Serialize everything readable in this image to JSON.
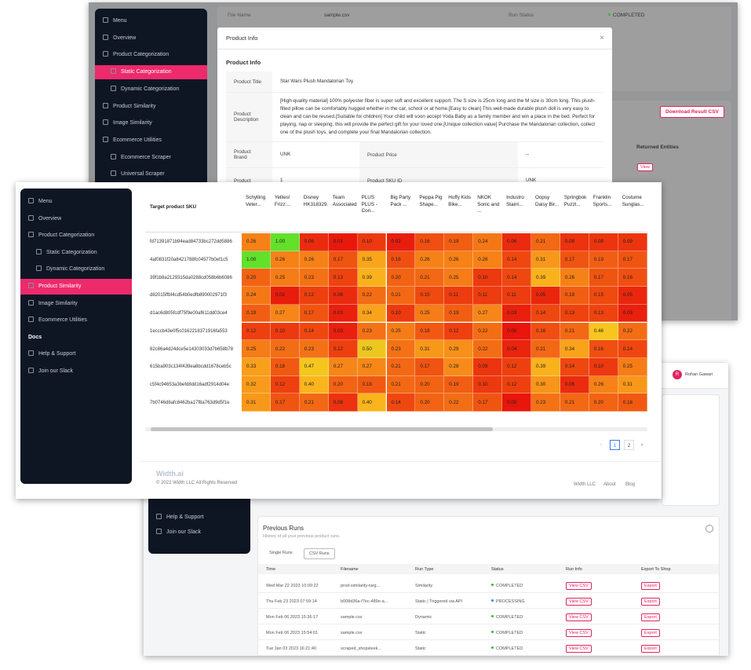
{
  "back_top": {
    "sidebar": {
      "items": [
        "Menu",
        "Overview",
        "Product Categorization",
        "Static Categorization",
        "Dynamic Categorization",
        "Product Similarity",
        "Image Similarity",
        "Ecommerce Utilities",
        "Ecommerce Scraper",
        "Universal Scraper"
      ],
      "active": 3,
      "sub": [
        3,
        4,
        8,
        9
      ]
    },
    "run": {
      "file_label": "File Name",
      "file": "sample.csv",
      "status_label": "Run Status",
      "status": "COMPLETED"
    },
    "download_button": "Download Result CSV",
    "returned_label": "Returned Entities",
    "view_button": "View",
    "modal": {
      "header": "Product Info",
      "title": "Product Info",
      "product_title_label": "Product Title",
      "product_title": "Star Wars Plush Mandalorian Toy",
      "description_label": "Product Description",
      "description": "[High-quality material] 100% polyester fiber is super soft and excellent support. The S size is 25cm long and the M size is 30cm long. This plush-filled pillow can be comfortably hugged whether in the car, school or at home.[Easy to clean] This well-made durable plush doll is very easy to clean and can be reused.[Suitable for children] Your child will soon accept Yoda Baby as a family member and win a place in the bed. Perfect for playing, nap or sleeping, this will provide the perfect gift for your loved one.[Unique collection value] Purchase the Mandalorian collection, collect one of the plush toys, and complete your final Mandalorian collection.",
      "brand_label": "Product Brand",
      "brand": "UNK",
      "price_label": "Product Price",
      "price": "--",
      "next_label": "Product",
      "next_value": "1",
      "sku_label": "Product SKU ID",
      "sku": "UNK"
    }
  },
  "back_bottom": {
    "user": "Rohan Gawari",
    "avatar": "R",
    "sidebar": [
      "Help & Support",
      "Join our Slack"
    ],
    "previous_runs": {
      "title": "Previous Runs",
      "subtitle": "History of all your previous product runs.",
      "tabs": [
        "Single Runs",
        "CSV Runs"
      ],
      "columns": [
        "Time",
        "Filename",
        "Run Type",
        "Status",
        "Run Info",
        "Export To Shop"
      ],
      "rows": [
        [
          "Wed Mar 22 2023 10:09:22",
          "prod-similarity-targ...",
          "Similarity",
          "COMPLETED",
          "View CSV",
          "Export"
        ],
        [
          "Thu Feb 23 2023 07:59:14",
          "b008d36a-f7ec-489e-a...",
          "Static | Triggered via API",
          "PROCESSING",
          "View CSV",
          "Export"
        ],
        [
          "Mon Feb 06 2023 15:36:17",
          "sample.csv",
          "Dynamic",
          "COMPLETED",
          "View CSV",
          "Export"
        ],
        [
          "Mon Feb 06 2023 15:54:01",
          "sample.csv",
          "Static",
          "COMPLETED",
          "View CSV",
          "Export"
        ],
        [
          "Tue Jan 03 2023 16:21:40",
          "scraped_shopsleek...",
          "Static",
          "COMPLETED",
          "View CSV",
          "Export"
        ]
      ]
    }
  },
  "front": {
    "sidebar": {
      "items": [
        "Menu",
        "Overview",
        "Product Categorization",
        "Static Categorization",
        "Dynamic Categorization",
        "Product Similarity",
        "Image Similarity",
        "Ecommerce Utilities",
        "Docs",
        "Help & Support",
        "Join our Slack"
      ],
      "active": 5,
      "sub": [
        3,
        4
      ],
      "heading": [
        8
      ]
    },
    "table": {
      "corner": "Target product SKU",
      "columns": [
        "Schylling Veter...",
        "Yellies! Frizz:...",
        "Disney HK318329...",
        "Team Associated...",
        "PLUS PLUS - Con...",
        "Big Party Pack ...",
        "Peppa Pig Shape...",
        "Huffy Kids Bike...",
        "NKOK Sonic and ...",
        "Industro Stainl...",
        "Oopsy Daisy Bir...",
        "Springbok Puzzl...",
        "Franklin Sports...",
        "Costume Sunglas..."
      ],
      "rows": [
        {
          "sku": "fd71391871b94ead84733bc272dd5886",
          "cells": [
            "0.26",
            "1.00",
            "0.06",
            "0.01",
            "0.10",
            "0.02",
            "0.16",
            "0.19",
            "0.24",
            "0.06",
            "0.21",
            "0.08",
            "0.09",
            "0.09"
          ]
        },
        {
          "sku": "4af0831f20a8421788fc04577b0ef1c5",
          "cells": [
            "1.00",
            "0.26",
            "0.26",
            "0.17",
            "0.35",
            "0.16",
            "0.26",
            "0.26",
            "0.26",
            "0.14",
            "0.31",
            "0.17",
            "0.19",
            "0.17"
          ]
        },
        {
          "sku": "39f1b8a2129315da0288cd058b6b6086",
          "cells": [
            "0.20",
            "0.25",
            "0.23",
            "0.13",
            "0.39",
            "0.20",
            "0.21",
            "0.25",
            "0.10",
            "0.14",
            "0.39",
            "0.26",
            "0.17",
            "0.16"
          ]
        },
        {
          "sku": "d82015ffbf4cd54b0edfb890002971f3",
          "cells": [
            "0.24",
            "0.02",
            "0.12",
            "0.06",
            "0.22",
            "0.21",
            "0.15",
            "0.11",
            "0.11",
            "0.11",
            "0.05",
            "0.19",
            "0.15",
            "0.05"
          ]
        },
        {
          "sku": "d1ac6d805fcdf75f9e00af611dd03ce4",
          "cells": [
            "0.19",
            "0.27",
            "0.17",
            "0.03",
            "0.34",
            "0.10",
            "0.25",
            "0.19",
            "0.27",
            "0.03",
            "0.14",
            "0.13",
            "0.13",
            "0.03"
          ]
        },
        {
          "sku": "1ecccb43e0f5c0162218371916fa553",
          "cells": [
            "0.12",
            "0.10",
            "0.14",
            "0.03",
            "0.23",
            "0.25",
            "0.18",
            "0.12",
            "0.22",
            "0.00",
            "0.16",
            "0.21",
            "0.46",
            "0.22"
          ]
        },
        {
          "sku": "82c86a4d24dce5e14303033d7b658b78",
          "cells": [
            "0.25",
            "0.22",
            "0.23",
            "0.12",
            "0.50",
            "0.23",
            "0.31",
            "0.29",
            "0.22",
            "0.04",
            "0.21",
            "0.34",
            "0.16",
            "0.14"
          ]
        },
        {
          "sku": "615ba903c134f439ea8bcdd1678ceb5c",
          "cells": [
            "0.33",
            "0.18",
            "0.47",
            "0.27",
            "0.27",
            "0.21",
            "0.17",
            "0.28",
            "0.09",
            "0.12",
            "0.39",
            "0.14",
            "0.10",
            "0.25"
          ]
        },
        {
          "sku": "c5f4c94653a3befd8dd16adf2914d04e",
          "cells": [
            "0.32",
            "0.12",
            "0.40",
            "0.20",
            "0.18",
            "0.21",
            "0.20",
            "0.19",
            "0.10",
            "0.12",
            "0.30",
            "0.06",
            "0.26",
            "0.31"
          ]
        },
        {
          "sku": "7b0746d8afc8462ba17f8a763d9d5f1e",
          "cells": [
            "0.31",
            "0.17",
            "0.21",
            "0.08",
            "0.40",
            "0.14",
            "0.20",
            "0.22",
            "0.17",
            "0.00",
            "0.23",
            "0.21",
            "0.20",
            "0.18"
          ]
        }
      ]
    },
    "pagination": [
      "1",
      "2"
    ],
    "pagination_active": 0,
    "footer": {
      "logo": "Width.ai",
      "copyright": "© 2022 Width LLC All Rights Reserved",
      "links": [
        "Width LLC",
        "About",
        "Blog"
      ]
    }
  }
}
